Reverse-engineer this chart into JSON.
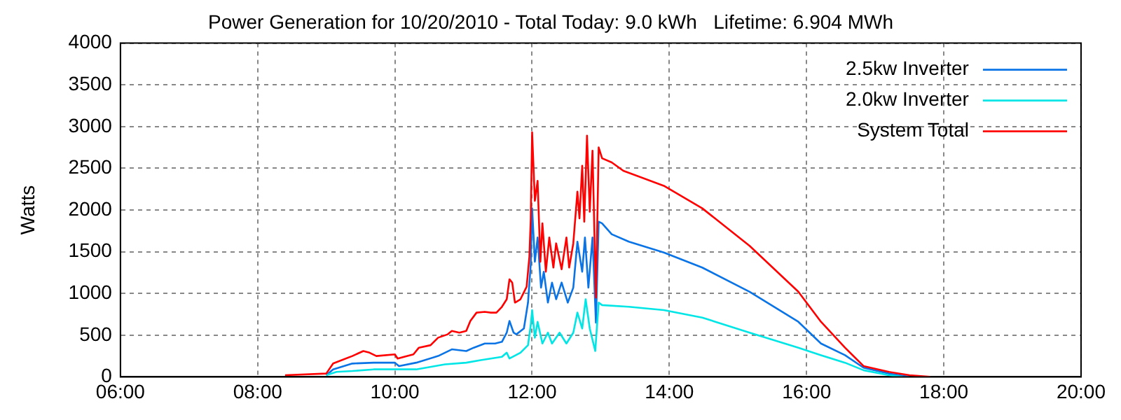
{
  "chart_data": {
    "type": "line",
    "title": "Power Generation for 10/20/2010 - Total Today: 9.0 kWh   Lifetime: 6.904 MWh",
    "ylabel": "Watts",
    "xlim": [
      6,
      20
    ],
    "xticks": [
      {
        "value": 6,
        "label": "06:00"
      },
      {
        "value": 8,
        "label": "08:00"
      },
      {
        "value": 10,
        "label": "10:00"
      },
      {
        "value": 12,
        "label": "12:00"
      },
      {
        "value": 14,
        "label": "14:00"
      },
      {
        "value": 16,
        "label": "16:00"
      },
      {
        "value": 18,
        "label": "18:00"
      },
      {
        "value": 20,
        "label": "20:00"
      }
    ],
    "ylim": [
      0,
      4000
    ],
    "yticks": [
      0,
      500,
      1000,
      1500,
      2000,
      2500,
      3000,
      3500,
      4000
    ],
    "grid": true,
    "legend": "top right",
    "marker": "none",
    "line_style": "solid",
    "series": [
      {
        "name": "2.5kw Inverter",
        "color": "#0a74e6",
        "x": [
          9.0,
          9.1,
          9.38,
          9.69,
          10.0,
          10.06,
          10.31,
          10.63,
          10.83,
          11.04,
          11.15,
          11.31,
          11.46,
          11.56,
          11.63,
          11.67,
          11.73,
          11.77,
          11.88,
          11.94,
          11.98,
          12.0,
          12.04,
          12.08,
          12.13,
          12.17,
          12.23,
          12.29,
          12.35,
          12.43,
          12.52,
          12.6,
          12.66,
          12.73,
          12.77,
          12.82,
          12.88,
          12.93,
          12.97,
          13.02,
          13.16,
          13.41,
          13.92,
          14.48,
          15.17,
          15.88,
          16.21,
          16.56,
          16.83,
          17.2,
          17.5
        ],
        "values": [
          20,
          90,
          160,
          170,
          170,
          130,
          170,
          250,
          330,
          310,
          350,
          400,
          400,
          420,
          530,
          670,
          530,
          510,
          580,
          890,
          1350,
          2020,
          1380,
          1670,
          1070,
          1260,
          890,
          1130,
          930,
          1130,
          890,
          1070,
          1620,
          1260,
          1670,
          1070,
          1670,
          650,
          1860,
          1840,
          1710,
          1620,
          1490,
          1310,
          1020,
          660,
          400,
          260,
          110,
          40,
          0
        ]
      },
      {
        "name": "2.0kw Inverter",
        "color": "#00e6e6",
        "x": [
          9.0,
          9.15,
          9.38,
          9.69,
          10.0,
          10.31,
          10.73,
          11.04,
          11.25,
          11.56,
          11.63,
          11.67,
          11.83,
          11.94,
          11.98,
          12.0,
          12.04,
          12.08,
          12.15,
          12.23,
          12.29,
          12.4,
          12.5,
          12.6,
          12.66,
          12.73,
          12.78,
          12.84,
          12.92,
          12.97,
          13.02,
          13.41,
          13.92,
          14.48,
          15.17,
          15.88,
          16.21,
          16.56,
          16.83,
          17.2,
          17.4
        ],
        "values": [
          20,
          60,
          70,
          90,
          90,
          90,
          150,
          170,
          200,
          240,
          290,
          220,
          290,
          380,
          620,
          800,
          470,
          660,
          400,
          530,
          400,
          530,
          400,
          530,
          770,
          580,
          930,
          580,
          310,
          890,
          860,
          840,
          800,
          710,
          530,
          350,
          260,
          170,
          80,
          20,
          0
        ]
      },
      {
        "name": "System Total",
        "color": "#ff0000",
        "x": [
          8.4,
          9.0,
          9.1,
          9.38,
          9.54,
          9.63,
          9.73,
          10.0,
          10.04,
          10.27,
          10.35,
          10.52,
          10.63,
          10.77,
          10.83,
          10.94,
          11.04,
          11.1,
          11.19,
          11.31,
          11.4,
          11.48,
          11.56,
          11.63,
          11.67,
          11.71,
          11.75,
          11.83,
          11.92,
          11.96,
          11.98,
          12.0,
          12.04,
          12.08,
          12.12,
          12.15,
          12.2,
          12.25,
          12.31,
          12.35,
          12.43,
          12.5,
          12.54,
          12.6,
          12.66,
          12.69,
          12.73,
          12.76,
          12.8,
          12.84,
          12.88,
          12.93,
          12.97,
          13.02,
          13.16,
          13.33,
          13.92,
          14.48,
          15.17,
          15.88,
          16.21,
          16.56,
          16.83,
          17.2,
          17.5,
          17.8
        ],
        "values": [
          20,
          40,
          160,
          250,
          310,
          290,
          250,
          270,
          220,
          270,
          350,
          380,
          470,
          510,
          550,
          530,
          550,
          670,
          770,
          780,
          770,
          770,
          840,
          930,
          1170,
          1130,
          890,
          930,
          1080,
          1440,
          1890,
          2930,
          2110,
          2350,
          1380,
          1840,
          1260,
          1670,
          1310,
          1600,
          1290,
          1670,
          1310,
          1600,
          2220,
          1900,
          2530,
          1860,
          2890,
          1980,
          2710,
          950,
          2750,
          2620,
          2570,
          2470,
          2290,
          2020,
          1570,
          1020,
          660,
          350,
          130,
          60,
          20,
          0
        ]
      }
    ]
  }
}
